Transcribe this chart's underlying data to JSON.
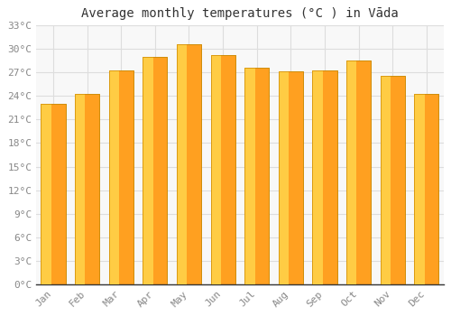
{
  "title": "Average monthly temperatures (°C ) in Vāda",
  "months": [
    "Jan",
    "Feb",
    "Mar",
    "Apr",
    "May",
    "Jun",
    "Jul",
    "Aug",
    "Sep",
    "Oct",
    "Nov",
    "Dec"
  ],
  "values": [
    23.0,
    24.3,
    27.2,
    29.0,
    30.5,
    29.2,
    27.6,
    27.1,
    27.2,
    28.5,
    26.5,
    24.2
  ],
  "bar_color_left": "#FFCC44",
  "bar_color_right": "#FFA020",
  "bar_edge_color": "#CC8800",
  "ylim": [
    0,
    33
  ],
  "yticks": [
    0,
    3,
    6,
    9,
    12,
    15,
    18,
    21,
    24,
    27,
    30,
    33
  ],
  "ytick_labels": [
    "0°C",
    "3°C",
    "6°C",
    "9°C",
    "12°C",
    "15°C",
    "18°C",
    "21°C",
    "24°C",
    "27°C",
    "30°C",
    "33°C"
  ],
  "background_color": "#ffffff",
  "plot_bg_color": "#f8f8f8",
  "grid_color": "#dddddd",
  "title_fontsize": 10,
  "tick_fontsize": 8,
  "tick_color": "#888888",
  "axis_color": "#333333",
  "bar_width": 0.72
}
